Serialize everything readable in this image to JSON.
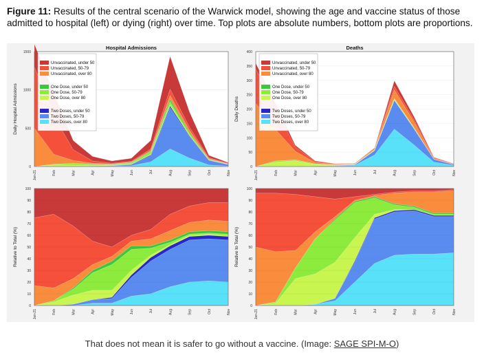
{
  "figure": {
    "label": "Figure 11:",
    "caption": "Results of the central scenario of the Warwick model, showing the age and vaccine status of those admitted to hospital (left) or dying (right) over time. Top plots are absolute numbers, bottom plots are proportions."
  },
  "credit": {
    "text": "That does not mean it is safer to go without a vaccine. (Image: ",
    "link": "SAGE SPI-M-O",
    "suffix": ")"
  },
  "colors": [
    "#c83a3a",
    "#f4503a",
    "#fa8c3e",
    "#3cc83c",
    "#8ceb3c",
    "#c8f550",
    "#2828c8",
    "#5a8cf0",
    "#5ae1fa"
  ],
  "legend": [
    "Unvaccinated, under 50",
    "Unvaccinated, 50-79",
    "Unvaccinated, over 80",
    "One Dose, under 50",
    "One Dose, 50-79",
    "One Dose, over 80",
    "Two Doses, under 50",
    "Two Doses, 50-79",
    "Two Doses, over 80"
  ],
  "chart_data": [
    {
      "type": "area",
      "title": "Hospital Admissions",
      "ylabel": "Daily Hospital Admissions",
      "xlabel": "",
      "x": [
        "Jan-21",
        "Feb",
        "Mar",
        "Apr",
        "May",
        "Jun",
        "Jul",
        "Aug",
        "Sep",
        "Oct",
        "Nov"
      ],
      "yticks": [
        "0",
        "500",
        "1000",
        "1500"
      ],
      "ylim": [
        0,
        1500
      ],
      "legend_position": "top-left",
      "series": [
        {
          "name": "Unvaccinated, under 50",
          "values": [
            300,
            300,
            120,
            60,
            30,
            40,
            110,
            430,
            200,
            30,
            10
          ]
        },
        {
          "name": "Unvaccinated, 50-79",
          "values": [
            800,
            500,
            140,
            30,
            10,
            10,
            20,
            80,
            40,
            10,
            5
          ]
        },
        {
          "name": "Unvaccinated, over 80",
          "values": [
            500,
            130,
            40,
            10,
            5,
            5,
            10,
            50,
            30,
            10,
            5
          ]
        },
        {
          "name": "One Dose, under 50",
          "values": [
            0,
            0,
            0,
            2,
            3,
            5,
            10,
            30,
            15,
            5,
            2
          ]
        },
        {
          "name": "One Dose, 50-79",
          "values": [
            0,
            10,
            20,
            15,
            10,
            15,
            30,
            40,
            20,
            5,
            2
          ]
        },
        {
          "name": "One Dose, over 80",
          "values": [
            0,
            20,
            20,
            10,
            5,
            5,
            10,
            20,
            10,
            3,
            1
          ]
        },
        {
          "name": "Two Doses, under 50",
          "values": [
            0,
            0,
            0,
            0,
            0,
            3,
            10,
            20,
            10,
            3,
            1
          ]
        },
        {
          "name": "Two Doses, 50-79",
          "values": [
            0,
            0,
            0,
            3,
            5,
            15,
            80,
            540,
            280,
            60,
            20
          ]
        },
        {
          "name": "Two Doses, over 80",
          "values": [
            0,
            0,
            0,
            2,
            5,
            10,
            60,
            230,
            110,
            20,
            5
          ]
        }
      ]
    },
    {
      "type": "area",
      "title": "Deaths",
      "ylabel": "Daily Deaths",
      "xlabel": "",
      "x": [
        "Jan-21",
        "Feb",
        "Mar",
        "Apr",
        "May",
        "Jun",
        "Jul",
        "Aug",
        "Sep",
        "Oct",
        "Nov"
      ],
      "yticks": [
        "0",
        "50",
        "100",
        "150",
        "200",
        "250",
        "300",
        "350",
        "400"
      ],
      "ylim": [
        0,
        400
      ],
      "legend_position": "top-left",
      "series": [
        {
          "name": "Unvaccinated, under 50",
          "values": [
            20,
            20,
            6,
            2,
            1,
            1,
            2,
            20,
            10,
            2,
            1
          ]
        },
        {
          "name": "Unvaccinated, 50-79",
          "values": [
            120,
            70,
            15,
            4,
            1,
            1,
            2,
            12,
            8,
            2,
            1
          ]
        },
        {
          "name": "Unvaccinated, over 80",
          "values": [
            220,
            110,
            30,
            5,
            2,
            1,
            3,
            30,
            20,
            3,
            1
          ]
        },
        {
          "name": "One Dose, under 50",
          "values": [
            0,
            0,
            0,
            0,
            0,
            0,
            0,
            1,
            1,
            0,
            0
          ]
        },
        {
          "name": "One Dose, 50-79",
          "values": [
            0,
            4,
            3,
            2,
            1,
            1,
            1,
            2,
            1,
            0,
            0
          ]
        },
        {
          "name": "One Dose, over 80",
          "values": [
            0,
            15,
            20,
            5,
            2,
            1,
            2,
            3,
            2,
            0,
            0
          ]
        },
        {
          "name": "Two Doses, under 50",
          "values": [
            0,
            0,
            0,
            0,
            0,
            0,
            0,
            1,
            1,
            0,
            0
          ]
        },
        {
          "name": "Two Doses, 50-79",
          "values": [
            0,
            0,
            0,
            1,
            1,
            2,
            15,
            100,
            55,
            10,
            3
          ]
        },
        {
          "name": "Two Doses, over 80",
          "values": [
            0,
            0,
            0,
            1,
            2,
            4,
            40,
            130,
            75,
            15,
            4
          ]
        }
      ]
    },
    {
      "type": "area",
      "title": "",
      "ylabel": "Relative to Total (%)",
      "xlabel": "",
      "x": [
        "Jan-21",
        "Feb",
        "Mar",
        "Apr",
        "May",
        "Jun",
        "Jul",
        "Aug",
        "Sep",
        "Oct",
        "Nov"
      ],
      "yticks": [
        "0",
        "10",
        "20",
        "30",
        "40",
        "50",
        "60",
        "70",
        "80",
        "90",
        "100"
      ],
      "ylim": [
        0,
        100
      ],
      "series": [
        {
          "name": "Unvaccinated, under 50",
          "values": [
            25,
            22,
            32,
            45,
            50,
            40,
            35,
            22,
            15,
            12,
            12
          ]
        },
        {
          "name": "Unvaccinated, 50-79",
          "values": [
            58,
            63,
            45,
            20,
            8,
            5,
            8,
            14,
            14,
            15,
            16
          ]
        },
        {
          "name": "Unvaccinated, over 80",
          "values": [
            17,
            11,
            8,
            5,
            4,
            4,
            6,
            8,
            8,
            9,
            9
          ]
        },
        {
          "name": "One Dose, under 50",
          "values": [
            0,
            0,
            1,
            2,
            3,
            3,
            2,
            2,
            2,
            2,
            2
          ]
        },
        {
          "name": "One Dose, 50-79",
          "values": [
            0,
            1,
            5,
            15,
            22,
            18,
            6,
            2,
            1,
            1,
            1
          ]
        },
        {
          "name": "One Dose, over 80",
          "values": [
            0,
            3,
            8,
            8,
            6,
            4,
            2,
            1,
            1,
            1,
            1
          ]
        },
        {
          "name": "Two Doses, under 50",
          "values": [
            0,
            0,
            0,
            0,
            1,
            2,
            3,
            3,
            3,
            3,
            3
          ]
        },
        {
          "name": "Two Doses, 50-79",
          "values": [
            0,
            0,
            1,
            3,
            4,
            16,
            28,
            32,
            36,
            36,
            36
          ]
        },
        {
          "name": "Two Doses, over 80",
          "values": [
            0,
            0,
            0,
            2,
            2,
            8,
            10,
            16,
            20,
            21,
            20
          ]
        }
      ]
    },
    {
      "type": "area",
      "title": "",
      "ylabel": "Relative to Total (%)",
      "xlabel": "",
      "x": [
        "Jan-21",
        "Feb",
        "Mar",
        "Apr",
        "May",
        "Jun",
        "Jul",
        "Aug",
        "Sep",
        "Oct",
        "Nov"
      ],
      "yticks": [
        "0",
        "10",
        "20",
        "30",
        "40",
        "50",
        "60",
        "70",
        "80",
        "90",
        "100"
      ],
      "ylim": [
        0,
        100
      ],
      "series": [
        {
          "name": "Unvaccinated, under 50",
          "values": [
            4,
            4,
            5,
            7,
            9,
            7,
            5,
            3,
            2,
            2,
            1
          ]
        },
        {
          "name": "Unvaccinated, 50-79",
          "values": [
            46,
            50,
            48,
            30,
            15,
            3,
            1,
            1,
            1,
            1,
            1
          ]
        },
        {
          "name": "Unvaccinated, over 80",
          "values": [
            50,
            43,
            15,
            6,
            2,
            1,
            1,
            9,
            12,
            18,
            19
          ]
        },
        {
          "name": "One Dose, under 50",
          "values": [
            0,
            0,
            0,
            0,
            1,
            1,
            1,
            1,
            1,
            1,
            1
          ]
        },
        {
          "name": "One Dose, 50-79",
          "values": [
            0,
            1,
            9,
            30,
            36,
            30,
            14,
            4,
            2,
            1,
            1
          ]
        },
        {
          "name": "One Dose, over 80",
          "values": [
            0,
            2,
            23,
            26,
            31,
            20,
            3,
            1,
            0,
            0,
            0
          ]
        },
        {
          "name": "Two Doses, under 50",
          "values": [
            0,
            0,
            0,
            0,
            0,
            1,
            1,
            1,
            1,
            1,
            1
          ]
        },
        {
          "name": "Two Doses, 50-79",
          "values": [
            0,
            0,
            0,
            0,
            2,
            17,
            38,
            37,
            37,
            32,
            31
          ]
        },
        {
          "name": "Two Doses, over 80",
          "values": [
            0,
            0,
            0,
            1,
            4,
            20,
            36,
            43,
            44,
            44,
            45
          ]
        }
      ]
    }
  ]
}
